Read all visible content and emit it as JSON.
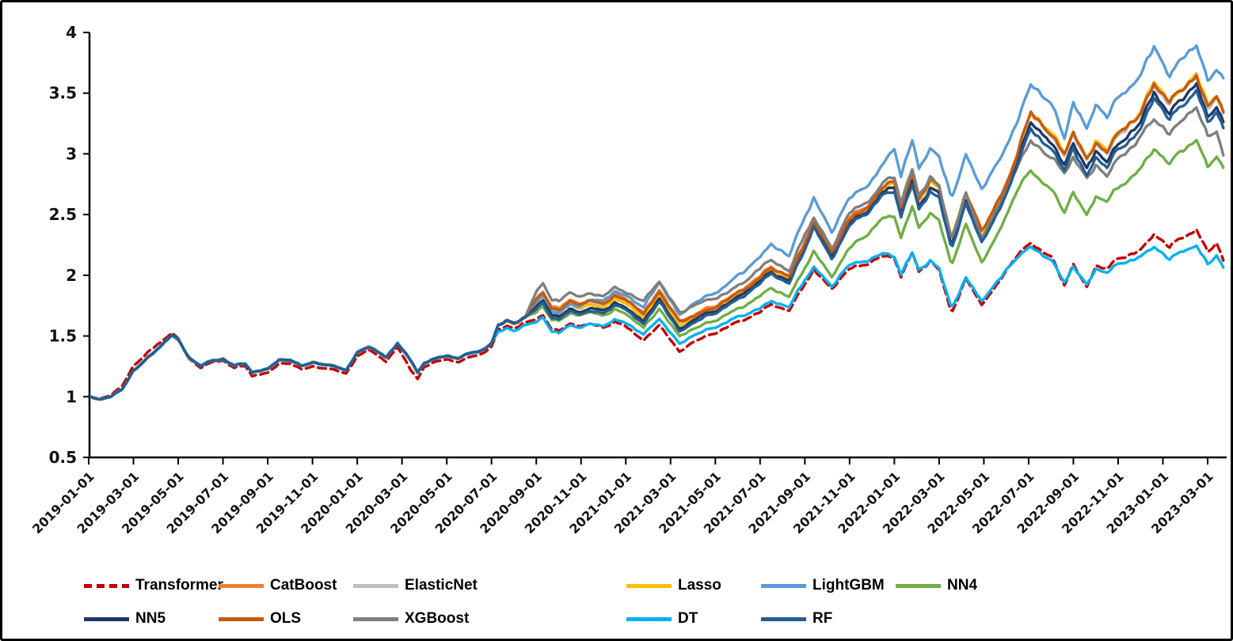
{
  "chart_data": {
    "type": "line",
    "title": "",
    "grid": false,
    "legend_position": "bottom",
    "y_axis": {
      "min": 0.5,
      "max": 4,
      "tick_labels": [
        "0.5",
        "1",
        "1.5",
        "2",
        "2.5",
        "3",
        "3.5",
        "4"
      ]
    },
    "x_axis": {
      "tick_labels": [
        "2019-01-01",
        "2019-03-01",
        "2019-05-01",
        "2019-07-01",
        "2019-09-01",
        "2019-11-01",
        "2020-01-01",
        "2020-03-01",
        "2020-05-01",
        "2020-07-01",
        "2020-09-01",
        "2020-11-01",
        "2021-01-01",
        "2021-03-01",
        "2021-05-01",
        "2021-07-01",
        "2021-09-01",
        "2021-11-01",
        "2022-01-01",
        "2022-03-01",
        "2022-05-01",
        "2022-07-01",
        "2022-09-01",
        "2022-11-01",
        "2023-01-01",
        "2023-03-01"
      ]
    },
    "early_anchors": [
      [
        0,
        1.0
      ],
      [
        0.5,
        0.975
      ],
      [
        1,
        1.0
      ],
      [
        1.5,
        1.06
      ],
      [
        2,
        1.22
      ],
      [
        2.5,
        1.3
      ],
      [
        3,
        1.38
      ],
      [
        3.7,
        1.5
      ],
      [
        4,
        1.46
      ],
      [
        4.5,
        1.32
      ],
      [
        5,
        1.26
      ],
      [
        5.5,
        1.3
      ],
      [
        6,
        1.31
      ],
      [
        6.5,
        1.25
      ],
      [
        7,
        1.27
      ],
      [
        7.3,
        1.2
      ],
      [
        8,
        1.23
      ],
      [
        8.5,
        1.31
      ],
      [
        9,
        1.3
      ],
      [
        9.5,
        1.25
      ],
      [
        10,
        1.28
      ],
      [
        10.5,
        1.26
      ],
      [
        11,
        1.26
      ],
      [
        11.5,
        1.22
      ],
      [
        12,
        1.36
      ],
      [
        12.5,
        1.41
      ],
      [
        13.3,
        1.32
      ],
      [
        13.8,
        1.45
      ],
      [
        14.4,
        1.3
      ],
      [
        14.7,
        1.2
      ],
      [
        15,
        1.28
      ],
      [
        15.5,
        1.31
      ],
      [
        16,
        1.33
      ],
      [
        16.5,
        1.32
      ],
      [
        17,
        1.36
      ],
      [
        17.5,
        1.38
      ],
      [
        18,
        1.44
      ],
      [
        18.3,
        1.58
      ],
      [
        18.7,
        1.62
      ],
      [
        19,
        1.6
      ],
      [
        19.5,
        1.65
      ]
    ],
    "late_months": [
      20,
      20.3,
      20.7,
      21,
      21.5,
      22,
      22.5,
      23,
      23.5,
      24,
      24.8,
      25.5,
      26.4,
      27,
      28,
      29,
      30,
      30.5,
      31.3,
      32,
      32.4,
      33.2,
      34,
      35,
      35.5,
      36,
      36.3,
      36.8,
      37.1,
      37.6,
      38,
      38.55,
      39.2,
      39.9,
      40.5,
      41,
      41.5,
      42.1,
      43,
      43.6,
      44,
      44.6,
      45,
      45.5,
      46,
      47,
      47.6,
      48.3,
      49,
      49.5,
      50,
      50.4,
      50.7
    ],
    "series": [
      {
        "name": "Transformer",
        "color": "#C00000",
        "dash": true,
        "anchors_early_own": [
          [
            0,
            1.0
          ],
          [
            0.5,
            0.98
          ],
          [
            1,
            1.01
          ],
          [
            1.5,
            1.09
          ],
          [
            2,
            1.26
          ],
          [
            2.5,
            1.34
          ],
          [
            3,
            1.42
          ],
          [
            3.7,
            1.52
          ],
          [
            4,
            1.47
          ],
          [
            4.5,
            1.31
          ],
          [
            5,
            1.24
          ],
          [
            5.5,
            1.29
          ],
          [
            6,
            1.3
          ],
          [
            6.5,
            1.23
          ],
          [
            7,
            1.25
          ],
          [
            7.3,
            1.17
          ],
          [
            8,
            1.2
          ],
          [
            8.5,
            1.28
          ],
          [
            9,
            1.27
          ],
          [
            9.5,
            1.22
          ],
          [
            10,
            1.25
          ],
          [
            10.5,
            1.23
          ],
          [
            11,
            1.23
          ],
          [
            11.5,
            1.19
          ],
          [
            12,
            1.33
          ],
          [
            12.5,
            1.39
          ],
          [
            13.3,
            1.28
          ],
          [
            13.8,
            1.42
          ],
          [
            14.4,
            1.22
          ],
          [
            14.7,
            1.15
          ],
          [
            15,
            1.25
          ],
          [
            15.5,
            1.28
          ],
          [
            16,
            1.3
          ],
          [
            16.5,
            1.29
          ],
          [
            17,
            1.33
          ],
          [
            17.5,
            1.35
          ],
          [
            18,
            1.41
          ],
          [
            18.3,
            1.54
          ],
          [
            18.7,
            1.58
          ],
          [
            19,
            1.56
          ],
          [
            19.5,
            1.61
          ]
        ],
        "values_late": [
          1.64,
          1.68,
          1.56,
          1.54,
          1.6,
          1.57,
          1.6,
          1.58,
          1.62,
          1.58,
          1.45,
          1.6,
          1.37,
          1.45,
          1.52,
          1.62,
          1.7,
          1.75,
          1.7,
          1.95,
          2.05,
          1.88,
          2.05,
          2.12,
          2.16,
          2.15,
          1.98,
          2.18,
          2.02,
          2.12,
          2.05,
          1.7,
          1.96,
          1.75,
          1.9,
          2.05,
          2.18,
          2.25,
          2.15,
          1.92,
          2.1,
          1.9,
          2.08,
          2.05,
          2.12,
          2.22,
          2.35,
          2.22,
          2.32,
          2.38,
          2.2,
          2.28,
          2.12
        ]
      },
      {
        "name": "CatBoost",
        "color": "#ED7D31",
        "dash": false,
        "use_early": true,
        "values_late": [
          1.82,
          1.88,
          1.74,
          1.72,
          1.79,
          1.76,
          1.8,
          1.79,
          1.84,
          1.81,
          1.68,
          1.88,
          1.63,
          1.67,
          1.74,
          1.87,
          1.99,
          2.06,
          1.99,
          2.29,
          2.46,
          2.19,
          2.46,
          2.62,
          2.74,
          2.79,
          2.56,
          2.82,
          2.62,
          2.79,
          2.74,
          2.32,
          2.66,
          2.36,
          2.56,
          2.76,
          3.02,
          3.33,
          3.15,
          3.0,
          3.2,
          2.95,
          3.1,
          3.0,
          3.15,
          3.35,
          3.6,
          3.4,
          3.55,
          3.65,
          3.4,
          3.5,
          3.35
        ]
      },
      {
        "name": "ElasticNet",
        "color": "#BFBFBF",
        "dash": false,
        "use_early": true,
        "values_late": [
          1.79,
          1.85,
          1.71,
          1.69,
          1.76,
          1.73,
          1.77,
          1.76,
          1.81,
          1.78,
          1.65,
          1.85,
          1.6,
          1.65,
          1.72,
          1.85,
          1.97,
          2.04,
          1.97,
          2.27,
          2.44,
          2.17,
          2.44,
          2.6,
          2.72,
          2.77,
          2.54,
          2.8,
          2.6,
          2.77,
          2.72,
          2.3,
          2.64,
          2.34,
          2.54,
          2.74,
          3.0,
          3.32,
          3.14,
          2.99,
          3.19,
          2.94,
          3.09,
          2.99,
          3.14,
          3.34,
          3.59,
          3.39,
          3.54,
          3.64,
          3.39,
          3.49,
          3.34
        ]
      },
      {
        "name": "Lasso",
        "color": "#FFC000",
        "dash": false,
        "use_early": true,
        "values_late": [
          1.78,
          1.84,
          1.7,
          1.68,
          1.75,
          1.72,
          1.76,
          1.75,
          1.8,
          1.77,
          1.64,
          1.84,
          1.59,
          1.65,
          1.72,
          1.85,
          1.97,
          2.04,
          1.97,
          2.27,
          2.44,
          2.17,
          2.44,
          2.6,
          2.72,
          2.78,
          2.55,
          2.81,
          2.61,
          2.78,
          2.73,
          2.31,
          2.65,
          2.35,
          2.55,
          2.75,
          3.01,
          3.34,
          3.16,
          3.01,
          3.21,
          2.96,
          3.11,
          3.01,
          3.16,
          3.36,
          3.61,
          3.41,
          3.56,
          3.66,
          3.41,
          3.51,
          3.36
        ]
      },
      {
        "name": "LightGBM",
        "color": "#5B9BD5",
        "dash": false,
        "use_early": true,
        "values_late": [
          1.78,
          1.84,
          1.7,
          1.68,
          1.76,
          1.74,
          1.8,
          1.8,
          1.87,
          1.84,
          1.72,
          1.95,
          1.68,
          1.76,
          1.85,
          2.0,
          2.15,
          2.25,
          2.15,
          2.5,
          2.65,
          2.35,
          2.62,
          2.8,
          2.92,
          3.05,
          2.8,
          3.1,
          2.88,
          3.05,
          2.98,
          2.65,
          2.98,
          2.7,
          2.88,
          3.08,
          3.3,
          3.55,
          3.4,
          3.15,
          3.45,
          3.2,
          3.4,
          3.3,
          3.45,
          3.65,
          3.92,
          3.62,
          3.8,
          3.9,
          3.62,
          3.74,
          3.62
        ]
      },
      {
        "name": "NN4",
        "color": "#70AD47",
        "dash": false,
        "use_early": true,
        "values_late": [
          1.7,
          1.76,
          1.64,
          1.62,
          1.68,
          1.66,
          1.7,
          1.68,
          1.72,
          1.68,
          1.56,
          1.73,
          1.5,
          1.56,
          1.62,
          1.73,
          1.83,
          1.88,
          1.82,
          2.08,
          2.2,
          1.98,
          2.22,
          2.38,
          2.48,
          2.5,
          2.3,
          2.55,
          2.38,
          2.52,
          2.46,
          2.1,
          2.4,
          2.1,
          2.3,
          2.5,
          2.72,
          2.85,
          2.7,
          2.52,
          2.7,
          2.5,
          2.65,
          2.6,
          2.7,
          2.9,
          3.05,
          2.9,
          3.05,
          3.12,
          2.9,
          3.0,
          2.88
        ]
      },
      {
        "name": "NN5",
        "color": "#1F3864",
        "dash": false,
        "use_early": true,
        "values_late": [
          1.75,
          1.81,
          1.67,
          1.65,
          1.72,
          1.69,
          1.73,
          1.72,
          1.77,
          1.74,
          1.61,
          1.81,
          1.56,
          1.63,
          1.7,
          1.83,
          1.95,
          2.02,
          1.95,
          2.25,
          2.42,
          2.15,
          2.42,
          2.58,
          2.7,
          2.73,
          2.5,
          2.76,
          2.56,
          2.73,
          2.68,
          2.26,
          2.6,
          2.3,
          2.5,
          2.7,
          2.96,
          3.25,
          3.07,
          2.92,
          3.12,
          2.87,
          3.02,
          2.92,
          3.07,
          3.27,
          3.52,
          3.32,
          3.47,
          3.57,
          3.32,
          3.42,
          3.27
        ]
      },
      {
        "name": "OLS",
        "color": "#C55A11",
        "dash": false,
        "use_early": true,
        "values_late": [
          1.81,
          1.87,
          1.73,
          1.71,
          1.78,
          1.75,
          1.79,
          1.78,
          1.83,
          1.8,
          1.67,
          1.87,
          1.62,
          1.66,
          1.73,
          1.86,
          1.98,
          2.05,
          1.98,
          2.28,
          2.45,
          2.18,
          2.45,
          2.61,
          2.73,
          2.79,
          2.56,
          2.82,
          2.62,
          2.79,
          2.74,
          2.32,
          2.66,
          2.36,
          2.56,
          2.76,
          3.02,
          3.33,
          3.15,
          3.0,
          3.2,
          2.95,
          3.1,
          3.0,
          3.15,
          3.35,
          3.6,
          3.4,
          3.55,
          3.65,
          3.4,
          3.5,
          3.35
        ]
      },
      {
        "name": "XGBoost",
        "color": "#7F7F7F",
        "dash": false,
        "use_early": true,
        "values_late": [
          1.88,
          1.95,
          1.8,
          1.78,
          1.85,
          1.82,
          1.85,
          1.84,
          1.9,
          1.86,
          1.78,
          1.95,
          1.7,
          1.75,
          1.8,
          1.92,
          2.05,
          2.12,
          2.03,
          2.35,
          2.48,
          2.22,
          2.5,
          2.65,
          2.78,
          2.82,
          2.58,
          2.85,
          2.65,
          2.82,
          2.75,
          2.3,
          2.66,
          2.3,
          2.5,
          2.7,
          2.92,
          3.1,
          2.95,
          2.85,
          3.0,
          2.8,
          2.9,
          2.8,
          2.95,
          3.15,
          3.3,
          3.15,
          3.3,
          3.38,
          3.15,
          3.22,
          3.0
        ]
      },
      {
        "name": "DT",
        "color": "#00B0F0",
        "dash": false,
        "use_early": true,
        "anchors_pre": [
          [
            18.3,
            1.52
          ],
          [
            18.7,
            1.56
          ],
          [
            19,
            1.54
          ],
          [
            19.5,
            1.59
          ]
        ],
        "values_late": [
          1.62,
          1.66,
          1.54,
          1.52,
          1.59,
          1.56,
          1.6,
          1.59,
          1.64,
          1.61,
          1.5,
          1.65,
          1.44,
          1.5,
          1.57,
          1.66,
          1.73,
          1.78,
          1.73,
          1.98,
          2.08,
          1.9,
          2.08,
          2.15,
          2.18,
          2.16,
          2.0,
          2.18,
          2.04,
          2.12,
          2.06,
          1.74,
          1.97,
          1.78,
          1.92,
          2.06,
          2.16,
          2.22,
          2.12,
          1.95,
          2.08,
          1.92,
          2.05,
          2.02,
          2.08,
          2.16,
          2.25,
          2.12,
          2.2,
          2.25,
          2.1,
          2.18,
          2.06
        ]
      },
      {
        "name": "RF",
        "color": "#255E91",
        "dash": false,
        "use_early": true,
        "values_late": [
          1.73,
          1.79,
          1.65,
          1.63,
          1.7,
          1.67,
          1.71,
          1.7,
          1.75,
          1.72,
          1.59,
          1.79,
          1.54,
          1.61,
          1.68,
          1.81,
          1.93,
          2.0,
          1.93,
          2.23,
          2.4,
          2.13,
          2.4,
          2.56,
          2.68,
          2.7,
          2.47,
          2.73,
          2.53,
          2.7,
          2.65,
          2.23,
          2.57,
          2.27,
          2.47,
          2.67,
          2.93,
          3.2,
          3.02,
          2.87,
          3.07,
          2.82,
          2.97,
          2.87,
          3.02,
          3.22,
          3.47,
          3.27,
          3.42,
          3.52,
          3.27,
          3.37,
          3.22
        ]
      }
    ],
    "legend": {
      "rows": [
        [
          "Transformer",
          "CatBoost",
          "ElasticNet",
          "Lasso",
          "LightGBM",
          "NN4"
        ],
        [
          "NN5",
          "OLS",
          "XGBoost",
          "DT",
          "RF"
        ]
      ]
    }
  }
}
